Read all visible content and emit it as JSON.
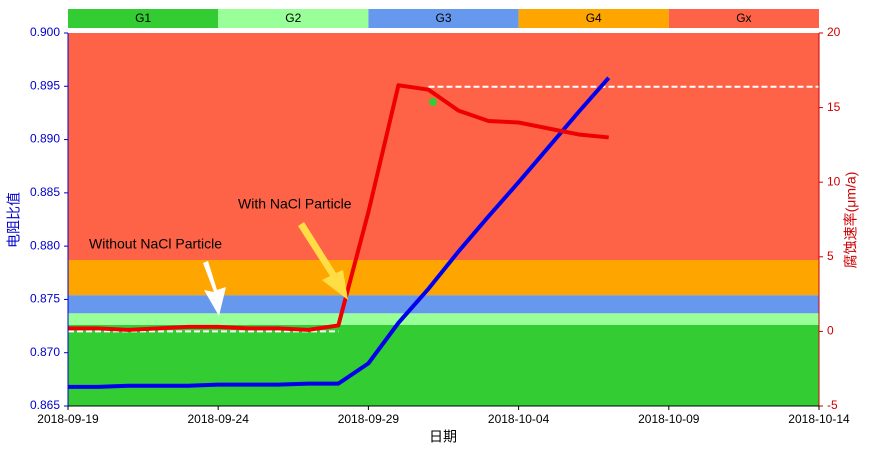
{
  "chart_data": {
    "type": "line",
    "x_label": "日期",
    "y_label": "电阻比值",
    "y2_label": "腐蚀速率(μm/a)",
    "xlim": [
      "2018-09-19",
      "2018-10-14"
    ],
    "xticks": [
      "2018-09-19",
      "2018-09-24",
      "2018-09-29",
      "2018-10-04",
      "2018-10-09",
      "2018-10-14"
    ],
    "ylim": [
      0.865,
      0.9
    ],
    "yticks": [
      0.865,
      {
        "value": 0.87,
        "label": "0.870"
      },
      0.875,
      {
        "value": 0.88,
        "label": "0.880"
      },
      0.885,
      {
        "value": 0.89,
        "label": "0.890"
      },
      0.895,
      {
        "value": 0.9,
        "label": "0.900"
      }
    ],
    "y2lim": [
      -5,
      20
    ],
    "y2ticks": [
      -5,
      0,
      5,
      10,
      15,
      20
    ],
    "bands": [
      {
        "name": "G1",
        "color": "#33cc33",
        "from": 0.865,
        "to": 0.8726
      },
      {
        "name": "G2",
        "color": "#99ff99",
        "from": 0.8726,
        "to": 0.8737
      },
      {
        "name": "G3",
        "color": "#6699ee",
        "from": 0.8737,
        "to": 0.8754
      },
      {
        "name": "G4",
        "color": "#ffa500",
        "from": 0.8754,
        "to": 0.8787
      },
      {
        "name": "Gx",
        "color": "#ff6347",
        "from": 0.8787,
        "to": 0.9
      }
    ],
    "x": [
      "2018-09-19",
      "2018-09-20",
      "2018-09-21",
      "2018-09-22",
      "2018-09-23",
      "2018-09-24",
      "2018-09-25",
      "2018-09-26",
      "2018-09-27",
      "2018-09-28",
      "2018-09-29",
      "2018-09-30",
      "2018-10-01",
      "2018-10-02",
      "2018-10-03",
      "2018-10-04",
      "2018-10-05",
      "2018-10-06",
      "2018-10-07"
    ],
    "series": [
      {
        "color": "#0000ee",
        "values": [
          0.8668,
          0.8668,
          0.8669,
          0.8669,
          0.8669,
          0.867,
          0.867,
          0.867,
          0.8671,
          0.8671,
          0.869,
          0.8728,
          0.876,
          0.8795,
          0.8828,
          0.886,
          0.8893,
          0.8926,
          0.8958
        ]
      },
      {
        "color": "#ee0000",
        "axis": "y2",
        "values": [
          0.2,
          0.2,
          0.1,
          0.2,
          0.3,
          0.3,
          0.2,
          0.2,
          0.1,
          0.4,
          8,
          16.5,
          16.2,
          14.8,
          14.1,
          14.0,
          13.6,
          13.2,
          13.0
        ]
      }
    ],
    "reference_lines": [
      {
        "x": [
          "2018-09-19",
          "2018-09-28"
        ],
        "y2": 0.0
      },
      {
        "x": [
          "2018-10-01",
          "2018-10-14"
        ],
        "y2": 16.4
      }
    ],
    "annotations": [
      "Without NaCl Particle",
      "With NaCl Particle"
    ]
  }
}
